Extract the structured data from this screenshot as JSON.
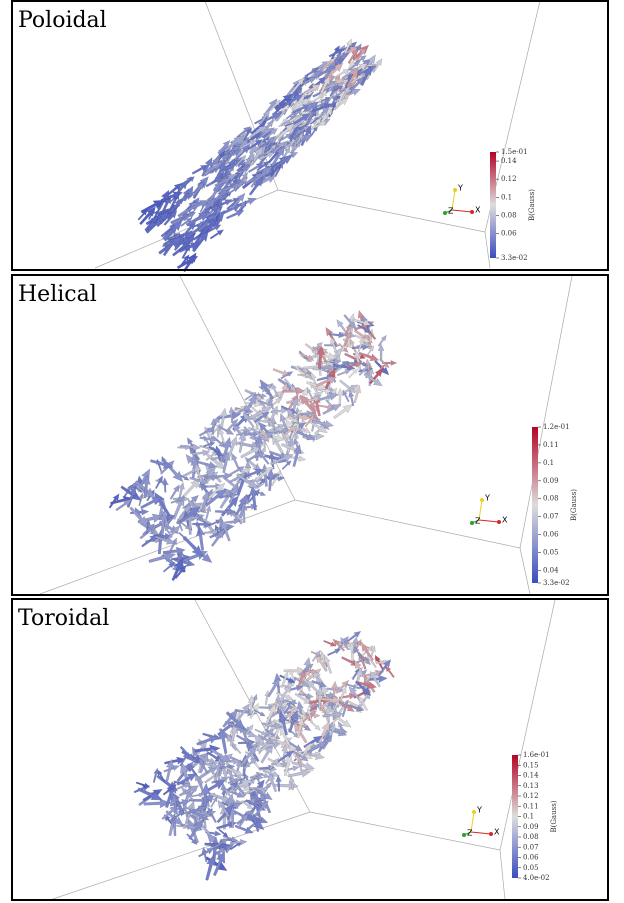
{
  "panels": [
    {
      "title": "Poloidal",
      "colorbar": {
        "label": "B(Gauss)",
        "ticks": [
          {
            "value": 0.15,
            "label": "1.5e-01"
          },
          0.14,
          0.12,
          0.1,
          0.08,
          0.06,
          {
            "value": 0.033,
            "label": "3.3e-02"
          }
        ]
      },
      "axes": [
        "X",
        "Y",
        "Z"
      ]
    },
    {
      "title": "Helical",
      "colorbar": {
        "label": "B(Gauss)",
        "ticks": [
          {
            "value": 0.12,
            "label": "1.2e-01"
          },
          0.11,
          0.1,
          0.09,
          0.08,
          0.07,
          0.06,
          0.05,
          0.04,
          {
            "value": 0.033,
            "label": "3.3e-02"
          }
        ]
      },
      "axes": [
        "X",
        "Y",
        "Z"
      ]
    },
    {
      "title": "Toroidal",
      "colorbar": {
        "label": "B(Gauss)",
        "ticks": [
          {
            "value": 0.16,
            "label": "1.6e-01"
          },
          0.15,
          0.14,
          0.13,
          0.12,
          0.11,
          0.1,
          0.09,
          0.08,
          0.07,
          0.06,
          0.05,
          {
            "value": 0.04,
            "label": "4.0e-02"
          }
        ]
      },
      "axes": [
        "X",
        "Y",
        "Z"
      ]
    }
  ]
}
